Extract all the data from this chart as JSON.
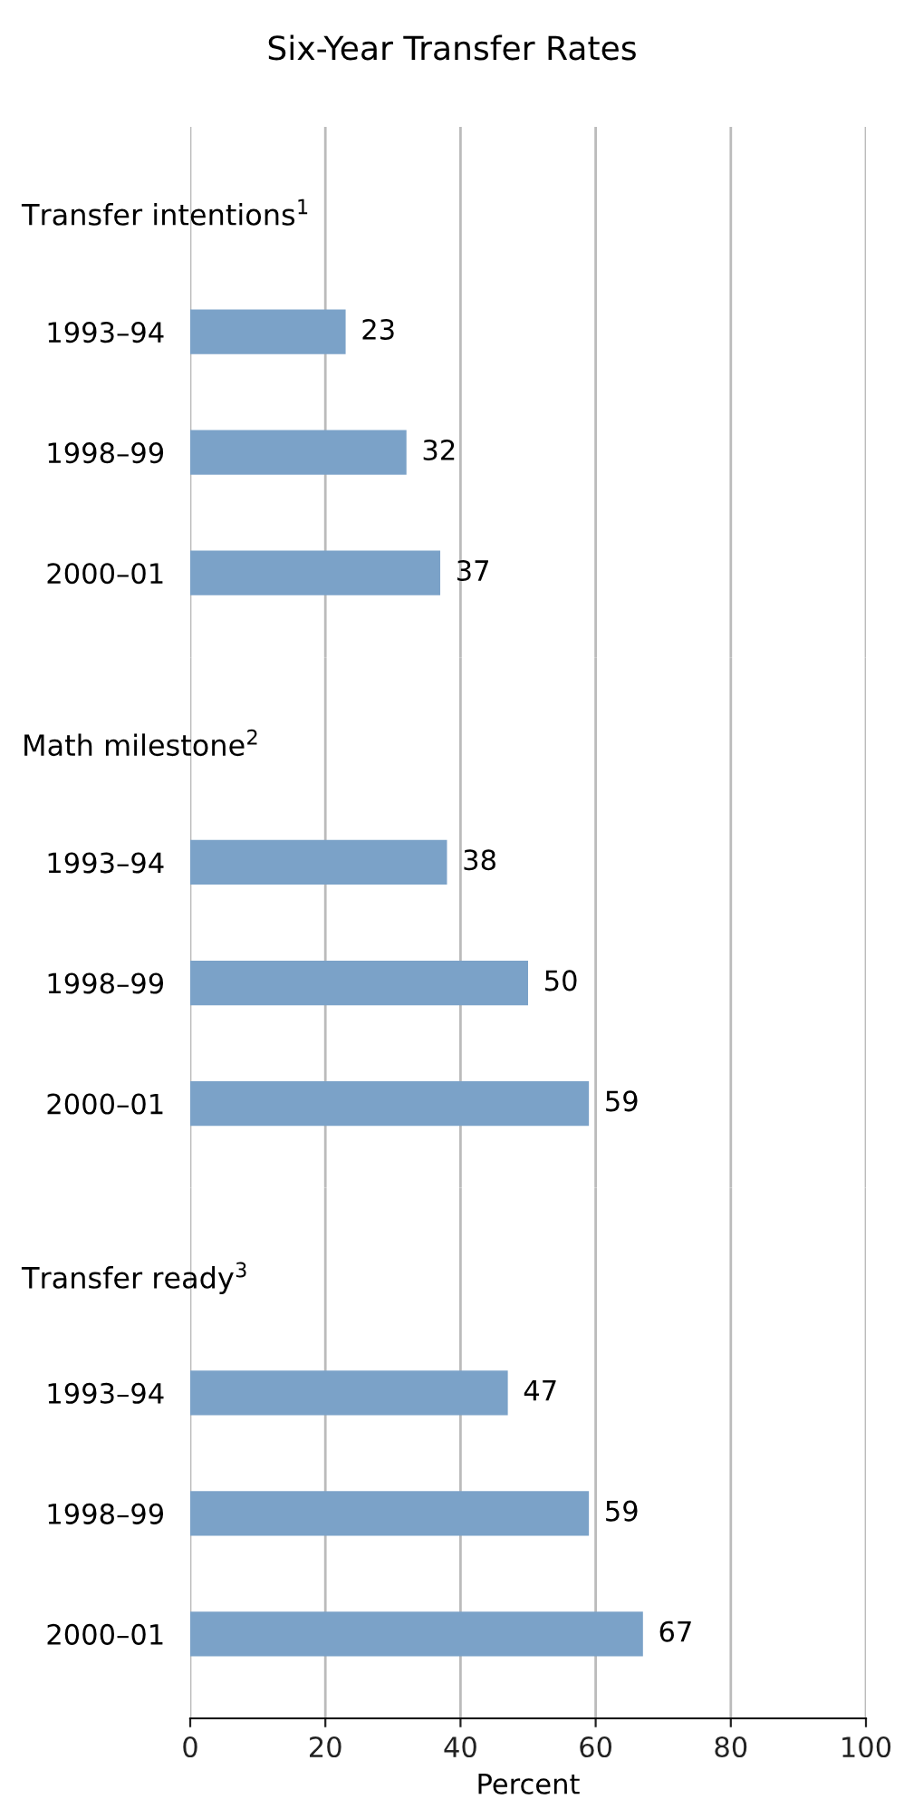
{
  "chart_data": [
    {
      "type": "bar",
      "orientation": "horizontal",
      "title": "Six-Year Transfer Rates",
      "subtitle": "Transfer intentions$^{1}$",
      "categories": [
        "1993–94",
        "1998–99",
        "2000–01"
      ],
      "values": [
        23,
        32,
        37
      ],
      "color": "#7ba2c8",
      "data_labels": true,
      "xlim": [
        0,
        100
      ],
      "xticks": [
        0,
        20,
        40,
        60,
        80,
        100
      ],
      "grid": "x",
      "tick_labels": "y"
    },
    {
      "type": "bar",
      "orientation": "horizontal",
      "subtitle": "Math milestone$^{2}$",
      "categories": [
        "1993–94",
        "1998–99",
        "2000–01"
      ],
      "values": [
        38,
        50,
        59
      ],
      "color": "#7ba2c8",
      "data_labels": true,
      "xlim": [
        0,
        100
      ],
      "xticks": [
        0,
        20,
        40,
        60,
        80,
        100
      ],
      "grid": "x",
      "tick_labels": "y"
    },
    {
      "type": "bar",
      "orientation": "horizontal",
      "subtitle": "Transfer ready$^{3}$",
      "categories": [
        "1993–94",
        "1998–99",
        "2000–01"
      ],
      "values": [
        47,
        59,
        67
      ],
      "color": "#7ba2c8",
      "data_labels": true,
      "xlim": [
        0,
        100
      ],
      "xticks": [
        0,
        20,
        40,
        60,
        80,
        100
      ],
      "grid": "x",
      "xlabel": "Percent"
    }
  ]
}
